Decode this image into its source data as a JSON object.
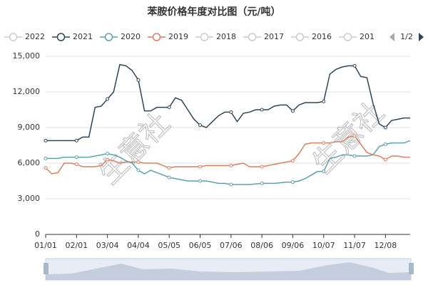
{
  "chart_data": {
    "type": "line",
    "title": "苯胺价格年度对比图（元/吨）",
    "categories": [
      "01/01",
      null,
      null,
      null,
      null,
      "02/01",
      null,
      null,
      null,
      null,
      "03/04",
      null,
      null,
      null,
      null,
      "04/04",
      null,
      null,
      null,
      null,
      "05/05",
      null,
      null,
      null,
      null,
      "06/05",
      null,
      null,
      null,
      null,
      "07/06",
      null,
      null,
      null,
      null,
      "08/06",
      null,
      null,
      null,
      null,
      "09/06",
      null,
      null,
      null,
      null,
      "10/07",
      null,
      null,
      null,
      null,
      "11/07",
      null,
      null,
      null,
      null,
      "12/08",
      null,
      null,
      null,
      null
    ],
    "series": [
      {
        "name": "2021",
        "color": "#2f4554",
        "values": [
          7900,
          7900,
          7900,
          7900,
          7900,
          7900,
          8200,
          8200,
          10700,
          10800,
          11400,
          12000,
          14300,
          14200,
          13800,
          13000,
          10400,
          10400,
          10700,
          10700,
          10700,
          11500,
          11300,
          10500,
          9700,
          9200,
          9000,
          9500,
          10000,
          10300,
          10300,
          9500,
          10200,
          10300,
          10500,
          10500,
          10500,
          10800,
          10900,
          10900,
          10400,
          10900,
          11100,
          11100,
          11100,
          11200,
          13500,
          13900,
          14100,
          14200,
          14200,
          13300,
          13200,
          11000,
          9300,
          9000,
          9600,
          9700,
          9800,
          9800
        ]
      },
      {
        "name": "2020",
        "color": "#61a0a8",
        "values": [
          6400,
          6400,
          6400,
          6500,
          6500,
          6500,
          6500,
          6500,
          6600,
          6700,
          6800,
          6700,
          6500,
          6200,
          6000,
          5400,
          5100,
          5400,
          5200,
          5000,
          4800,
          4700,
          4600,
          4500,
          4500,
          4500,
          4500,
          4400,
          4300,
          4300,
          4200,
          4200,
          4200,
          4200,
          4250,
          4300,
          4300,
          4300,
          4350,
          4400,
          4400,
          4500,
          4700,
          5000,
          5300,
          5300,
          6400,
          6500,
          6700,
          6700,
          6600,
          6600,
          6600,
          6700,
          7400,
          7600,
          7700,
          7700,
          7700,
          7900
        ]
      },
      {
        "name": "2019",
        "color": "#d48265",
        "values": [
          5600,
          5100,
          5200,
          6000,
          6000,
          5900,
          5700,
          5700,
          5700,
          5800,
          6300,
          6200,
          6000,
          6100,
          6100,
          6100,
          6000,
          6000,
          6000,
          5800,
          5600,
          5700,
          5700,
          5700,
          5700,
          5700,
          5800,
          5800,
          5800,
          5800,
          5800,
          5900,
          6000,
          5700,
          5700,
          5700,
          5800,
          5900,
          6000,
          6100,
          6200,
          6800,
          7600,
          7700,
          7700,
          7700,
          7700,
          7800,
          7800,
          8200,
          8300,
          7600,
          6900,
          6700,
          6600,
          6300,
          6600,
          6600,
          6500,
          6500
        ]
      }
    ],
    "legend_inactive": [
      "2022",
      "2018",
      "2017",
      "2016",
      "201"
    ],
    "legend_page": "1/2",
    "watermark": "生意社",
    "ylim": [
      0,
      15000
    ],
    "yticks": [
      0,
      {
        "value": 3000,
        "label": "3,000"
      },
      {
        "value": 6000,
        "label": "6,000"
      },
      {
        "value": 9000,
        "label": "9,000"
      },
      {
        "value": 12000,
        "label": "12,000"
      },
      {
        "value": 15000,
        "label": "15,000"
      }
    ],
    "grid": true
  }
}
